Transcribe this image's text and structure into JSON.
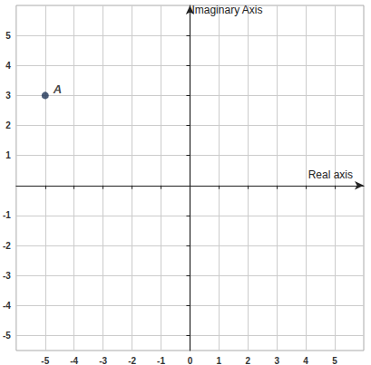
{
  "chart_data": {
    "type": "scatter",
    "x_label": "Real axis",
    "y_label": "Imaginary Axis",
    "x": [
      -5
    ],
    "values": [
      3
    ],
    "point_labels": [
      "A"
    ],
    "color": "#1f3556",
    "marker": "circle",
    "xlim": [
      -6,
      6
    ],
    "ylim": [
      -5.5,
      6
    ],
    "xticks": [
      -5,
      -4,
      -3,
      -2,
      -1,
      0,
      1,
      2,
      3,
      4,
      5
    ],
    "yticks": [
      -5,
      -4,
      -3,
      -2,
      -1,
      1,
      2,
      3,
      4,
      5
    ],
    "grid": true
  }
}
